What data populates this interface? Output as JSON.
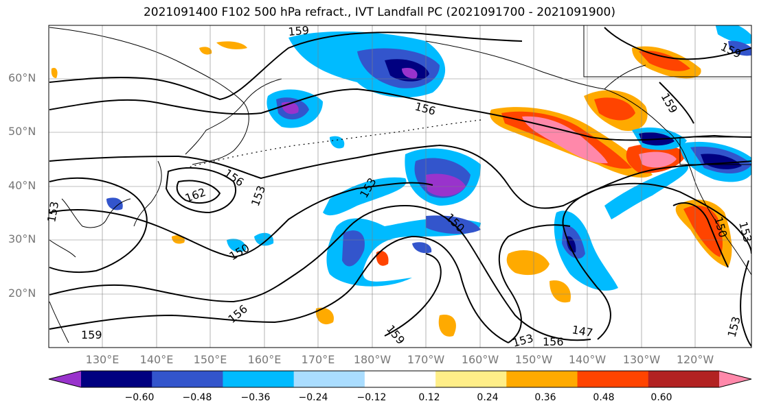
{
  "title": "2021091400 F102 500 hPa refract., IVT Landfall PC (2021091700 - 2021091900)",
  "lat_labels": [
    "60°N",
    "50°N",
    "40°N",
    "30°N",
    "20°N"
  ],
  "lon_labels": [
    "130°E",
    "140°E",
    "150°E",
    "160°E",
    "170°E",
    "180°W",
    "170°W",
    "160°W",
    "150°W",
    "140°W",
    "130°W",
    "120°W"
  ],
  "contour_labels": [
    "159",
    "156",
    "159",
    "159",
    "153",
    "156",
    "162",
    "153",
    "153",
    "150",
    "150",
    "156",
    "159",
    "159",
    "147",
    "153",
    "156",
    "150",
    "153",
    "153"
  ],
  "colorbar": {
    "colors": [
      "#9933cc",
      "#000080",
      "#3355cc",
      "#00bbff",
      "#aaddff",
      "#ffffff",
      "#ffee88",
      "#ffaa00",
      "#ff4400",
      "#b22222",
      "#ff88aa"
    ],
    "ticks": [
      "−0.60",
      "−0.48",
      "−0.36",
      "−0.24",
      "−0.12",
      "0.12",
      "0.24",
      "0.36",
      "0.48",
      "0.60"
    ]
  }
}
